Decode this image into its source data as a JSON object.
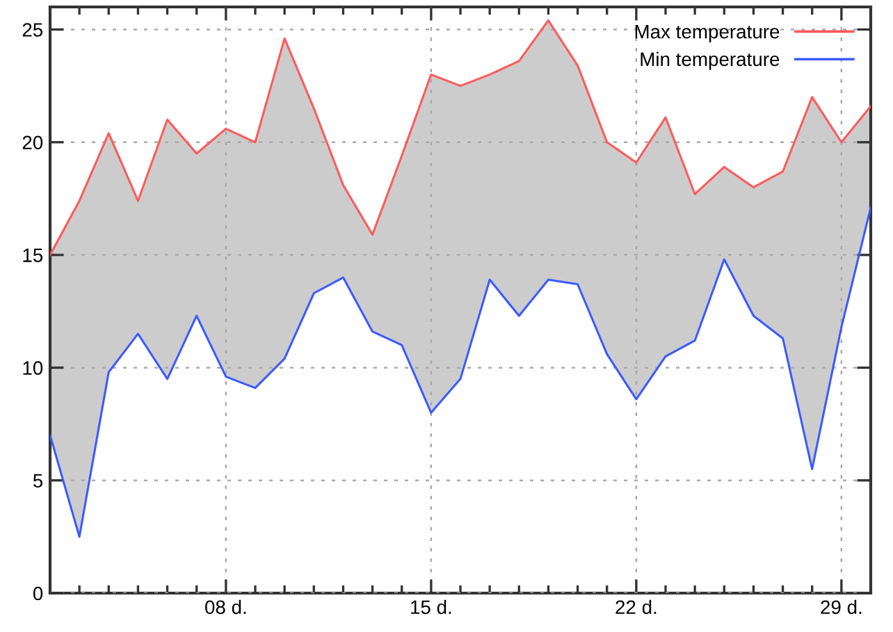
{
  "chart_data": {
    "type": "line",
    "x": [
      2,
      3,
      4,
      5,
      6,
      7,
      8,
      9,
      10,
      11,
      12,
      13,
      14,
      15,
      16,
      17,
      18,
      19,
      20,
      21,
      22,
      23,
      24,
      25,
      26,
      27,
      28,
      29,
      30
    ],
    "series": [
      {
        "name": "Max temperature",
        "color": "#ff5a5a",
        "values": [
          15.0,
          17.4,
          20.4,
          17.4,
          21.0,
          19.5,
          20.6,
          20.0,
          24.6,
          21.5,
          18.1,
          15.9,
          19.4,
          23.0,
          22.5,
          23.0,
          23.6,
          25.4,
          23.4,
          20.0,
          19.1,
          21.1,
          17.7,
          18.9,
          18.0,
          18.7,
          22.0,
          20.0,
          21.6
        ],
        "upper": [
          15.0,
          17.4,
          20.4,
          17.4,
          21.0,
          19.5,
          20.6,
          20.0,
          24.6,
          21.5,
          18.1,
          15.9,
          19.4,
          23.0,
          22.5,
          23.0,
          23.6,
          25.4,
          23.4,
          20.0,
          19.1,
          21.1,
          17.7,
          18.9,
          18.0,
          18.7,
          22.0,
          20.0,
          21.6
        ],
        "lower": [
          7.0,
          2.5,
          9.8,
          11.5,
          9.5,
          12.3,
          9.6,
          9.1,
          10.4,
          13.3,
          14.0,
          11.6,
          11.0,
          8.0,
          9.5,
          13.9,
          12.3,
          13.9,
          13.7,
          10.6,
          8.6,
          10.5,
          11.2,
          14.8,
          12.3,
          11.3,
          5.5,
          11.8,
          17.1
        ]
      },
      {
        "name": "Min temperature",
        "color": "#3c5aff",
        "values": [
          7.0,
          2.5,
          9.8,
          11.5,
          9.5,
          12.3,
          9.6,
          9.1,
          10.4,
          13.3,
          14.0,
          11.6,
          11.0,
          8.0,
          9.5,
          13.9,
          12.3,
          13.9,
          13.7,
          10.6,
          8.6,
          10.5,
          11.2,
          14.8,
          12.3,
          11.3,
          5.5,
          11.8,
          17.1
        ]
      }
    ],
    "xlim": [
      2,
      30
    ],
    "xticks": [
      {
        "value": 3,
        "label": null
      },
      {
        "value": 4,
        "label": null
      },
      {
        "value": 5,
        "label": null
      },
      {
        "value": 6,
        "label": null
      },
      {
        "value": 7,
        "label": null
      },
      {
        "value": 8,
        "label": "08 d."
      },
      {
        "value": 9,
        "label": null
      },
      {
        "value": 10,
        "label": null
      },
      {
        "value": 11,
        "label": null
      },
      {
        "value": 12,
        "label": null
      },
      {
        "value": 13,
        "label": null
      },
      {
        "value": 14,
        "label": null
      },
      {
        "value": 15,
        "label": "15 d."
      },
      {
        "value": 16,
        "label": null
      },
      {
        "value": 17,
        "label": null
      },
      {
        "value": 18,
        "label": null
      },
      {
        "value": 19,
        "label": null
      },
      {
        "value": 20,
        "label": null
      },
      {
        "value": 21,
        "label": null
      },
      {
        "value": 22,
        "label": "22 d."
      },
      {
        "value": 23,
        "label": null
      },
      {
        "value": 24,
        "label": null
      },
      {
        "value": 25,
        "label": null
      },
      {
        "value": 26,
        "label": null
      },
      {
        "value": 27,
        "label": null
      },
      {
        "value": 28,
        "label": null
      },
      {
        "value": 29,
        "label": "29 d."
      }
    ],
    "ylim": [
      0,
      26
    ],
    "yticks": [
      0,
      5,
      10,
      15,
      20,
      25
    ],
    "grid": true,
    "legend": "top right",
    "line_style": "solid",
    "marker": "none"
  }
}
